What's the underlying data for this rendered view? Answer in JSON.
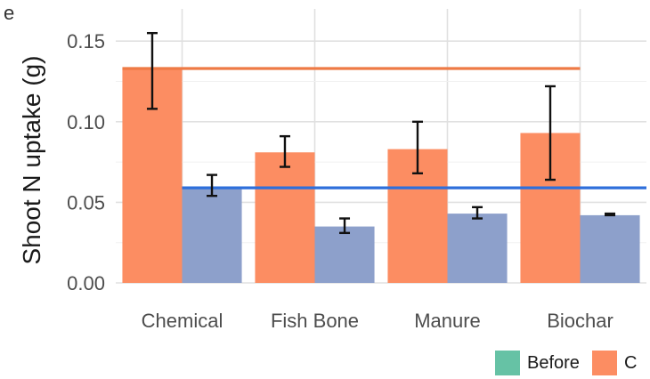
{
  "panel_tag": "e",
  "chart_data": {
    "type": "bar",
    "title": "",
    "xlabel": "",
    "ylabel": "Shoot N uptake (g)",
    "categories": [
      "Chemical",
      "Fish Bone",
      "Manure",
      "Biochar"
    ],
    "ylim": [
      0,
      0.17
    ],
    "yticks": [
      "0.00",
      "0.05",
      "0.10",
      "0.15"
    ],
    "grid": true,
    "legend_position": "bottom-right",
    "series": [
      {
        "name": "C",
        "color": "#FC8D62",
        "values": [
          0.133,
          0.081,
          0.083,
          0.093
        ],
        "err_low": [
          0.108,
          0.072,
          0.068,
          0.064
        ],
        "err_high": [
          0.155,
          0.091,
          0.1,
          0.122
        ]
      },
      {
        "color": "#8DA0CB",
        "values": [
          0.059,
          0.035,
          0.043,
          0.042
        ],
        "err_low": [
          0.054,
          0.031,
          0.04,
          0.042
        ],
        "err_high": [
          0.067,
          0.04,
          0.047,
          0.043
        ]
      }
    ],
    "reference_lines": [
      {
        "value": 0.133,
        "color": "#EE7A45"
      },
      {
        "value": 0.059,
        "color": "#2E6FDB"
      }
    ],
    "legend": [
      {
        "label": "Before",
        "color": "#66C2A5"
      },
      {
        "label": "C",
        "color": "#FC8D62"
      }
    ]
  }
}
